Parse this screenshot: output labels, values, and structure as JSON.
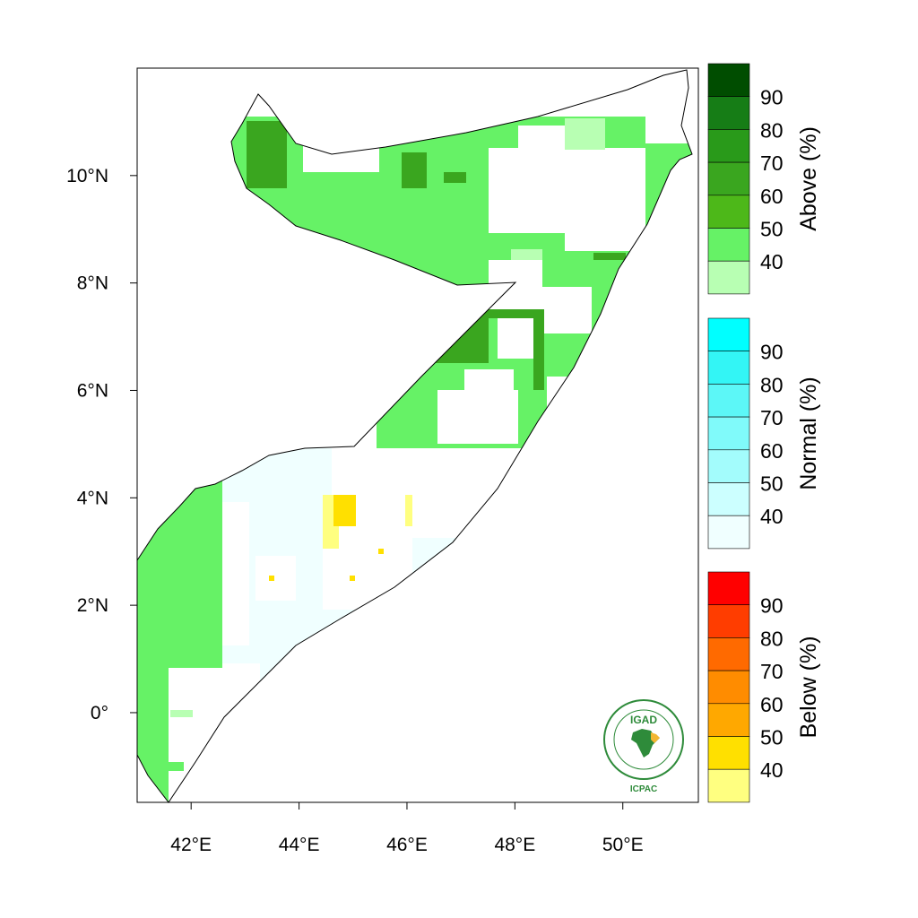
{
  "map": {
    "lon_ticks": [
      "42°E",
      "44°E",
      "46°E",
      "48°E",
      "50°E"
    ],
    "lat_ticks": [
      "10°N",
      "8°N",
      "6°N",
      "4°N",
      "2°N",
      "0°"
    ],
    "lon_values": [
      42,
      44,
      46,
      48,
      50
    ],
    "lat_values": [
      10,
      8,
      6,
      4,
      2,
      0
    ],
    "lon_range": [
      41.0,
      51.4
    ],
    "lat_range": [
      -1.67,
      12.0
    ]
  },
  "legends": [
    {
      "title": "Above (%)",
      "labels": [
        "90",
        "80",
        "70",
        "60",
        "50",
        "40"
      ],
      "colors": [
        "#004d00",
        "#167d16",
        "#299a1a",
        "#3aa61f",
        "#4db819",
        "#66f266",
        "#b8ffb3"
      ]
    },
    {
      "title": "Normal (%)",
      "labels": [
        "90",
        "80",
        "70",
        "60",
        "50",
        "40"
      ],
      "colors": [
        "#00ffff",
        "#33f5f5",
        "#5cf7f7",
        "#80fafa",
        "#a3fcfc",
        "#ccffff",
        "#f0ffff"
      ]
    },
    {
      "title": "Below (%)",
      "labels": [
        "90",
        "80",
        "70",
        "60",
        "50",
        "40"
      ],
      "colors": [
        "#ff0000",
        "#ff3d00",
        "#ff6a00",
        "#ff8c00",
        "#ffa800",
        "#ffe000",
        "#ffff80"
      ]
    }
  ],
  "logo": {
    "name": "IGAD",
    "subtitle": "ICPAC"
  },
  "colors": {
    "above_40": "#66f266",
    "above_50": "#4db819",
    "above_60": "#3aa61f",
    "above_low": "#b8ffb3",
    "normal_40": "#f0ffff",
    "below_40": "#ffff80",
    "below_50": "#ffe000",
    "logo_green": "#2e8b3a"
  }
}
